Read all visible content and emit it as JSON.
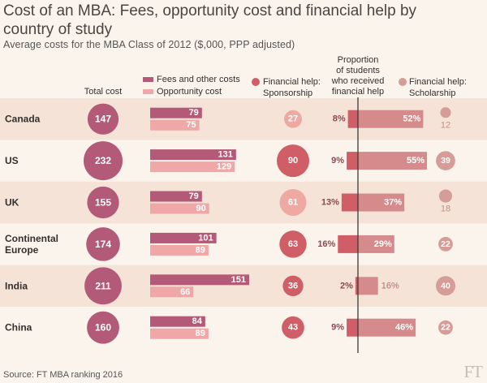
{
  "title": "Cost of an MBA: Fees, opportunity cost and financial help by country of study",
  "subtitle": "Average costs for the MBA Class of 2012 ($,000, PPP adjusted)",
  "source": "Source: FT MBA ranking 2016",
  "logo": "FT",
  "colors": {
    "background": "#fbf4ec",
    "band": "#f4e3d6",
    "total_circle": "#b25a77",
    "fees": "#b25a77",
    "opportunity": "#f0a7a8",
    "sponsorship": "#d05e66",
    "sponsorship_light": "#eda9a2",
    "proportion": "#d58b8b",
    "scholarship": "#d69c97",
    "divider": "#3d3937"
  },
  "chart_data": {
    "type": "table",
    "headers": {
      "total": "Total cost",
      "fees": "Fees and other costs",
      "opportunity": "Opportunity cost",
      "sponsorship": [
        "Financial help:",
        "Sponsorship"
      ],
      "proportion": [
        "Proportion",
        "of students",
        "who received",
        "financial help"
      ],
      "scholarship": [
        "Financial help:",
        "Scholarship"
      ]
    },
    "rows": [
      {
        "country": [
          "Canada"
        ],
        "total": 147,
        "fees": 79,
        "opportunity": 75,
        "sponsorship": 27,
        "proportion": 8,
        "proportion_label": "8%",
        "proportion_right": "52%",
        "proportion_right_value": 52,
        "scholarship": 12,
        "band": true
      },
      {
        "country": [
          "US"
        ],
        "total": 232,
        "fees": 131,
        "opportunity": 129,
        "sponsorship": 90,
        "proportion": 9,
        "proportion_label": "9%",
        "proportion_right": "55%",
        "proportion_right_value": 55,
        "scholarship": 39,
        "band": false
      },
      {
        "country": [
          "UK"
        ],
        "total": 155,
        "fees": 79,
        "opportunity": 90,
        "sponsorship": 61,
        "proportion": 13,
        "proportion_label": "13%",
        "proportion_right": "37%",
        "proportion_right_value": 37,
        "scholarship": 18,
        "band": true
      },
      {
        "country": [
          "Continental",
          "Europe"
        ],
        "total": 174,
        "fees": 101,
        "opportunity": 89,
        "sponsorship": 63,
        "proportion": 16,
        "proportion_label": "16%",
        "proportion_right": "29%",
        "proportion_right_value": 29,
        "scholarship": 22,
        "band": false
      },
      {
        "country": [
          "India"
        ],
        "total": 211,
        "fees": 151,
        "opportunity": 66,
        "sponsorship": 36,
        "proportion": 2,
        "proportion_label": "2%",
        "proportion_right": "16%",
        "proportion_right_value": 16,
        "scholarship": 40,
        "band": true
      },
      {
        "country": [
          "China"
        ],
        "total": 160,
        "fees": 84,
        "opportunity": 89,
        "sponsorship": 43,
        "proportion": 9,
        "proportion_label": "9%",
        "proportion_right": "46%",
        "proportion_right_value": 46,
        "scholarship": 22,
        "band": false
      }
    ]
  }
}
